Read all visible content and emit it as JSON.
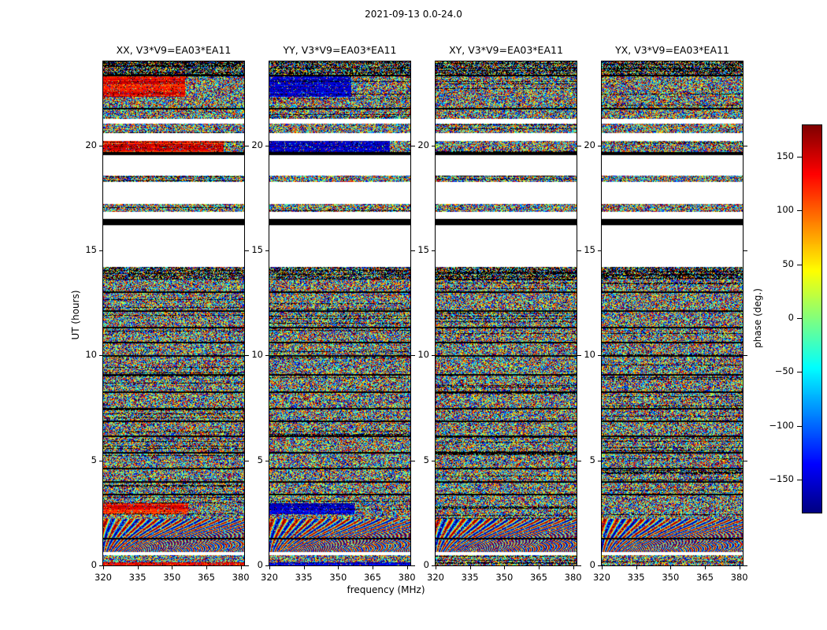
{
  "title": "2021-09-13 0.0-24.0",
  "xlabel": "frequency (MHz)",
  "ylabel": "UT (hours)",
  "panels": [
    {
      "id": "XX",
      "title": "XX, V3*V9=EA03*EA11",
      "coherent_hue": "red"
    },
    {
      "id": "YY",
      "title": "YY, V3*V9=EA03*EA11",
      "coherent_hue": "blue"
    },
    {
      "id": "XY",
      "title": "XY, V3*V9=EA03*EA11",
      "coherent_hue": null
    },
    {
      "id": "YX",
      "title": "YX, V3*V9=EA03*EA11",
      "coherent_hue": null
    }
  ],
  "axes": {
    "x_ticks": [
      320,
      335,
      350,
      365,
      380
    ],
    "x_range": [
      320,
      381.5
    ],
    "y_ticks": [
      0,
      5,
      10,
      15,
      20
    ],
    "y_range": [
      0,
      24
    ]
  },
  "colorbar": {
    "label": "phase (deg.)",
    "range": [
      -180,
      180
    ],
    "colormap": "jet",
    "ticks": [
      {
        "v": 150,
        "label": "150"
      },
      {
        "v": 100,
        "label": "100"
      },
      {
        "v": 50,
        "label": "50"
      },
      {
        "v": 0,
        "label": "0"
      },
      {
        "v": -50,
        "label": "−50"
      },
      {
        "v": -100,
        "label": "−100"
      },
      {
        "v": -150,
        "label": "−150"
      }
    ]
  },
  "chart_data": {
    "type": "heatmap",
    "title": "2021-09-13 0.0-24.0",
    "xlabel": "frequency (MHz)",
    "ylabel": "UT (hours)",
    "zlabel": "phase (deg.)",
    "x_range_mhz": [
      320,
      381.5
    ],
    "y_range_hours": [
      0,
      24
    ],
    "z_range_deg": [
      -180,
      180
    ],
    "colormap": "jet",
    "panels": [
      "XX, V3*V9=EA03*EA11",
      "YY, V3*V9=EA03*EA11",
      "XY, V3*V9=EA03*EA11",
      "YX, V3*V9=EA03*EA11"
    ],
    "panel_coherent_phase": {
      "XX": "coherent bands near +150/+180 deg (red-orange)",
      "YY": "coherent bands near -150/-180 deg (dark blue)",
      "XY": "random phase noise in coherent intervals",
      "YX": "random phase noise in coherent intervals"
    },
    "time_segments": [
      {
        "t0": 0.0,
        "t1": 0.15,
        "kind": "coherent",
        "split": 1.0
      },
      {
        "t0": 0.15,
        "t1": 0.5,
        "kind": "noise"
      },
      {
        "t0": 0.5,
        "t1": 0.65,
        "kind": "blank"
      },
      {
        "t0": 0.65,
        "t1": 2.2,
        "kind": "wavy"
      },
      {
        "t0": 2.2,
        "t1": 2.45,
        "kind": "noise"
      },
      {
        "t0": 2.45,
        "t1": 2.95,
        "kind": "coherent",
        "split": 0.6
      },
      {
        "t0": 2.95,
        "t1": 13.6,
        "kind": "noise"
      },
      {
        "t0": 13.6,
        "t1": 14.2,
        "kind": "dense"
      },
      {
        "t0": 14.2,
        "t1": 16.2,
        "kind": "blank"
      },
      {
        "t0": 16.2,
        "t1": 16.5,
        "kind": "black"
      },
      {
        "t0": 16.5,
        "t1": 16.85,
        "kind": "blank"
      },
      {
        "t0": 16.85,
        "t1": 17.2,
        "kind": "noise"
      },
      {
        "t0": 17.2,
        "t1": 18.25,
        "kind": "blank"
      },
      {
        "t0": 18.25,
        "t1": 18.55,
        "kind": "noise"
      },
      {
        "t0": 18.55,
        "t1": 19.55,
        "kind": "blank"
      },
      {
        "t0": 19.55,
        "t1": 19.7,
        "kind": "black"
      },
      {
        "t0": 19.7,
        "t1": 20.2,
        "kind": "coherent",
        "split": 0.85
      },
      {
        "t0": 20.2,
        "t1": 20.6,
        "kind": "blank"
      },
      {
        "t0": 20.6,
        "t1": 21.05,
        "kind": "noise"
      },
      {
        "t0": 21.05,
        "t1": 21.25,
        "kind": "blank"
      },
      {
        "t0": 21.25,
        "t1": 22.3,
        "kind": "noise"
      },
      {
        "t0": 22.3,
        "t1": 23.3,
        "kind": "coherent",
        "split": 0.58
      },
      {
        "t0": 23.3,
        "t1": 24.0,
        "kind": "dense"
      }
    ],
    "black_line_hours": [
      1.3,
      3.4,
      4.0,
      4.65,
      5.4,
      6.2,
      6.9,
      7.5,
      8.3,
      9.1,
      10.0,
      10.65,
      11.35,
      12.15,
      13.05,
      21.8,
      23.35
    ]
  }
}
